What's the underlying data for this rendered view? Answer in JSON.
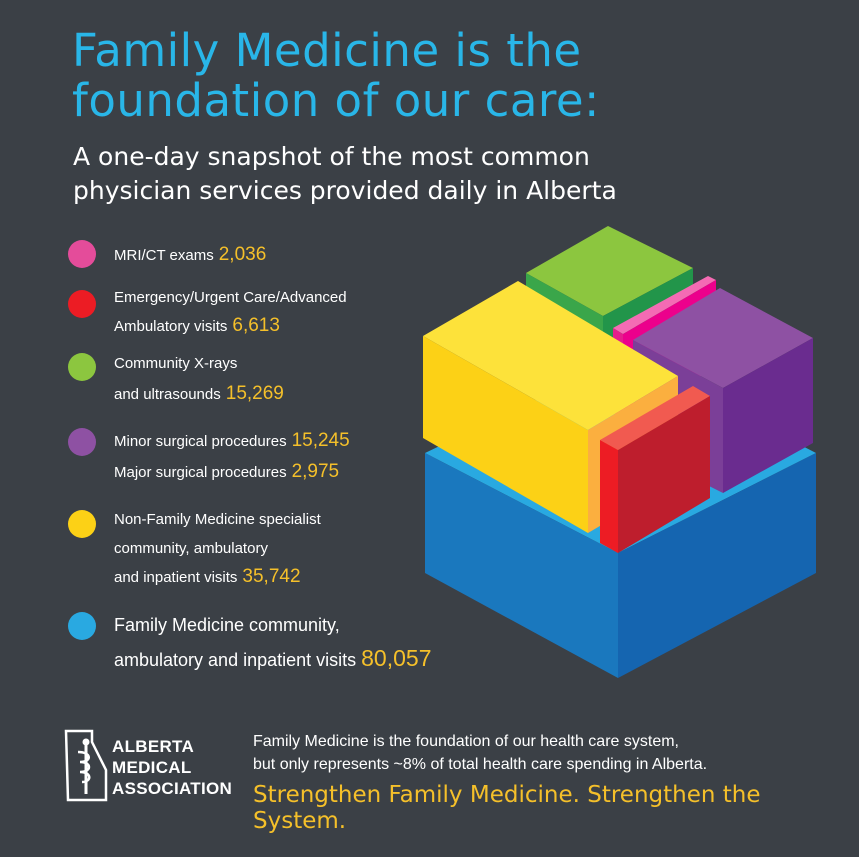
{
  "header": {
    "title_line1": "Family Medicine is the",
    "title_line2": "foundation of our care:",
    "subtitle_line1": "A one-day snapshot of the most common",
    "subtitle_line2": "physician services provided daily in Alberta"
  },
  "legend": [
    {
      "color": "#e44c9a",
      "lines": [
        {
          "text": "MRI/CT exams",
          "value": "2,036"
        }
      ]
    },
    {
      "color": "#ec1c24",
      "lines": [
        {
          "text": "Emergency/Urgent Care/Advanced",
          "value": ""
        },
        {
          "text": "Ambulatory visits",
          "value": "6,613"
        }
      ]
    },
    {
      "color": "#8cc63f",
      "lines": [
        {
          "text": "Community X-rays",
          "value": ""
        },
        {
          "text": "and ultrasounds",
          "value": "15,269"
        }
      ]
    },
    {
      "color": "#8e51a3",
      "lines": [
        {
          "text": "Minor surgical procedures",
          "value": "15,245"
        },
        {
          "text": "Major surgical procedures",
          "value": "2,975"
        }
      ]
    },
    {
      "color": "#fcd116",
      "lines": [
        {
          "text": "Non-Family Medicine specialist",
          "value": ""
        },
        {
          "text": "community, ambulatory",
          "value": ""
        },
        {
          "text": "and inpatient visits",
          "value": "35,742"
        }
      ]
    },
    {
      "color": "#29a9e1",
      "lines": [
        {
          "text": "Family Medicine community,",
          "value": ""
        },
        {
          "text": "ambulatory and inpatient visits",
          "value": "80,057"
        }
      ]
    }
  ],
  "footer": {
    "org_line1": "ALBERTA",
    "org_line2": "MEDICAL",
    "org_line3": "ASSOCIATION",
    "text_line1": "Family Medicine is the foundation of our health care system,",
    "text_line2": "but only represents ~8% of total health care spending in Alberta.",
    "tagline": "Strengthen Family Medicine. Strengthen the System."
  }
}
